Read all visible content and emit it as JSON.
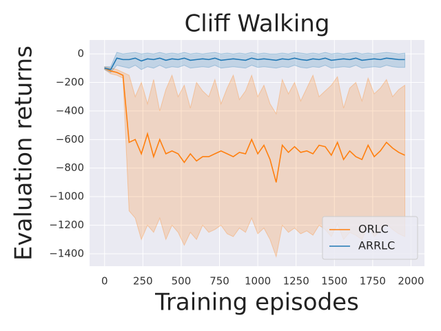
{
  "chart_data": {
    "type": "line",
    "title": "Cliff Walking",
    "x_label": "Training episodes",
    "y_label": "Evaluation returns",
    "x": [
      0,
      40,
      80,
      120,
      160,
      200,
      240,
      280,
      320,
      360,
      400,
      440,
      480,
      520,
      560,
      600,
      640,
      680,
      720,
      760,
      800,
      840,
      880,
      920,
      960,
      1000,
      1040,
      1080,
      1120,
      1160,
      1200,
      1240,
      1280,
      1320,
      1360,
      1400,
      1440,
      1480,
      1520,
      1560,
      1600,
      1640,
      1680,
      1720,
      1760,
      1800,
      1840,
      1880,
      1920,
      1960
    ],
    "series": [
      {
        "name": "ORLC",
        "color": "#ff7f0e",
        "values": [
          -100,
          -120,
          -130,
          -150,
          -620,
          -600,
          -700,
          -560,
          -720,
          -600,
          -700,
          -680,
          -700,
          -760,
          -700,
          -750,
          -720,
          -720,
          -700,
          -680,
          -700,
          -720,
          -690,
          -700,
          -600,
          -700,
          -640,
          -740,
          -900,
          -640,
          -690,
          -650,
          -690,
          -680,
          -700,
          -640,
          -650,
          -710,
          -620,
          -740,
          -680,
          -720,
          -740,
          -640,
          -720,
          -680,
          -620,
          -660,
          -690,
          -710
        ],
        "upper": [
          -90,
          -100,
          -110,
          -130,
          -150,
          -300,
          -200,
          -350,
          -180,
          -400,
          -250,
          -150,
          -300,
          -220,
          -380,
          -200,
          -260,
          -300,
          -180,
          -350,
          -240,
          -150,
          -320,
          -260,
          -150,
          -300,
          -220,
          -350,
          -420,
          -180,
          -280,
          -200,
          -330,
          -240,
          -150,
          -300,
          -260,
          -220,
          -160,
          -380,
          -240,
          -200,
          -330,
          -170,
          -280,
          -240,
          -180,
          -300,
          -250,
          -220
        ],
        "lower": [
          -110,
          -140,
          -150,
          -170,
          -1100,
          -1150,
          -1300,
          -1200,
          -1250,
          -1150,
          -1300,
          -1200,
          -1250,
          -1340,
          -1250,
          -1300,
          -1200,
          -1250,
          -1230,
          -1200,
          -1260,
          -1280,
          -1220,
          -1250,
          -1150,
          -1260,
          -1220,
          -1300,
          -1420,
          -1200,
          -1250,
          -1220,
          -1260,
          -1240,
          -1270,
          -1200,
          -1230,
          -1280,
          -1190,
          -1300,
          -1250,
          -1270,
          -1300,
          -1200,
          -1280,
          -1240,
          -1190,
          -1230,
          -1260,
          -1280
        ]
      },
      {
        "name": "ARRLC",
        "color": "#1f77b4",
        "values": [
          -100,
          -110,
          -30,
          -40,
          -40,
          -30,
          -50,
          -35,
          -40,
          -30,
          -45,
          -35,
          -40,
          -30,
          -45,
          -40,
          -35,
          -40,
          -30,
          -45,
          -40,
          -35,
          -40,
          -45,
          -30,
          -40,
          -35,
          -40,
          -45,
          -35,
          -40,
          -30,
          -40,
          -45,
          -35,
          -40,
          -30,
          -45,
          -40,
          -35,
          -40,
          -30,
          -45,
          -40,
          -35,
          -40,
          -30,
          -35,
          -40,
          -40
        ],
        "upper": [
          -90,
          -90,
          10,
          0,
          5,
          10,
          0,
          5,
          0,
          10,
          0,
          5,
          0,
          10,
          0,
          5,
          0,
          5,
          10,
          0,
          5,
          0,
          5,
          0,
          10,
          0,
          5,
          0,
          0,
          5,
          0,
          10,
          5,
          0,
          5,
          0,
          10,
          0,
          5,
          0,
          5,
          10,
          0,
          5,
          0,
          5,
          10,
          5,
          0,
          5
        ],
        "lower": [
          -110,
          -130,
          -80,
          -90,
          -100,
          -80,
          -110,
          -90,
          -100,
          -80,
          -100,
          -90,
          -95,
          -80,
          -100,
          -95,
          -90,
          -95,
          -80,
          -100,
          -95,
          -90,
          -95,
          -100,
          -80,
          -95,
          -90,
          -95,
          -100,
          -90,
          -95,
          -80,
          -95,
          -100,
          -90,
          -95,
          -80,
          -100,
          -95,
          -90,
          -95,
          -80,
          -100,
          -95,
          -90,
          -95,
          -80,
          -90,
          -95,
          -95
        ]
      }
    ],
    "xlim": [
      -98,
      2088
    ],
    "ylim": [
      -1487,
      97
    ],
    "xticks": [
      0,
      250,
      500,
      750,
      1000,
      1250,
      1500,
      1750,
      2000
    ],
    "yticks": [
      {
        "value": -1400,
        "label": "−1400"
      },
      {
        "value": -1200,
        "label": "−1200"
      },
      {
        "value": -1000,
        "label": "−1000"
      },
      {
        "value": -800,
        "label": "−800"
      },
      {
        "value": -600,
        "label": "−600"
      },
      {
        "value": -400,
        "label": "−400"
      },
      {
        "value": -200,
        "label": "−200"
      },
      0
    ],
    "grid": true,
    "legend": "lower right"
  }
}
